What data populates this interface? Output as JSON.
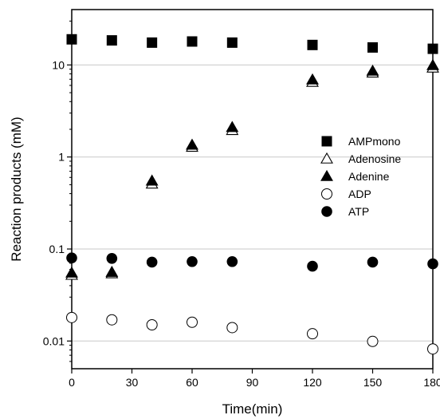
{
  "chart_data": {
    "type": "scatter",
    "xlabel": "Time(min)",
    "ylabel": "Reaction products (mM)",
    "xlim": [
      0,
      180
    ],
    "ylim": [
      0.005,
      40
    ],
    "yscale": "log",
    "x_ticks": [
      0,
      30,
      60,
      90,
      120,
      150,
      180
    ],
    "x_tick_labels": [
      "0",
      "30",
      "60",
      "90",
      "120",
      "150",
      "180"
    ],
    "y_ticks": [
      0.01,
      0.1,
      1,
      10
    ],
    "y_tick_labels": [
      "0.01",
      "0.1",
      "1",
      "10"
    ],
    "grid": "horizontal at major y ticks",
    "legend_position": "right-center",
    "series": [
      {
        "name": "AMPmono",
        "marker": "filled-square",
        "color": "#000000",
        "x": [
          0,
          20,
          40,
          60,
          80,
          120,
          150,
          180
        ],
        "y": [
          19,
          18.5,
          17.5,
          18,
          17.5,
          16.5,
          15.5,
          15
        ]
      },
      {
        "name": "Adenosine",
        "marker": "open-triangle",
        "color": "#000000",
        "x": [
          0,
          20,
          40,
          60,
          80,
          120,
          150,
          180
        ],
        "y": [
          0.052,
          0.054,
          0.51,
          1.28,
          1.95,
          6.5,
          8.2,
          9.3
        ]
      },
      {
        "name": "Adenine",
        "marker": "filled-triangle",
        "color": "#000000",
        "x": [
          0,
          20,
          40,
          60,
          80,
          120,
          150,
          180
        ],
        "y": [
          0.055,
          0.056,
          0.55,
          1.35,
          2.1,
          6.9,
          8.6,
          9.9
        ]
      },
      {
        "name": "ADP",
        "marker": "open-circle",
        "color": "#000000",
        "x": [
          0,
          20,
          40,
          60,
          80,
          120,
          150,
          180
        ],
        "y": [
          0.018,
          0.017,
          0.015,
          0.016,
          0.014,
          0.012,
          0.0099,
          0.0082
        ]
      },
      {
        "name": "ATP",
        "marker": "filled-circle",
        "color": "#000000",
        "x": [
          0,
          20,
          40,
          60,
          80,
          120,
          150,
          180
        ],
        "y": [
          0.08,
          0.079,
          0.072,
          0.073,
          0.073,
          0.065,
          0.072,
          0.069
        ]
      }
    ]
  }
}
